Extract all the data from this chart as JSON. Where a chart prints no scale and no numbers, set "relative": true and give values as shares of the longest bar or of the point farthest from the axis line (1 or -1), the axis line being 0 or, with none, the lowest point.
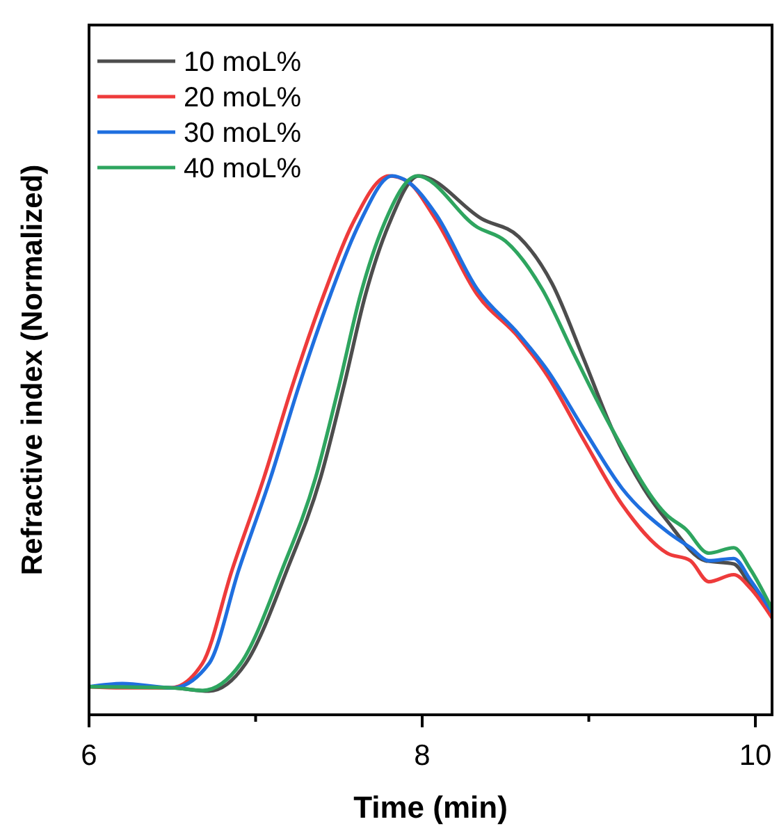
{
  "chart_data": {
    "type": "line",
    "xlabel": "Time (min)",
    "ylabel": "Refractive index (Normalized)",
    "relative": true,
    "xlim": [
      6,
      10.1
    ],
    "xticks": [
      6,
      {
        "value": 7,
        "label": null
      },
      8,
      {
        "value": 9,
        "label": null
      },
      10
    ],
    "legend": "top left",
    "grid": false,
    "marker": "none",
    "line_style": "solid",
    "series": [
      {
        "name": "10 moL%",
        "color": "#4d4d4d",
        "x": [
          6.0,
          6.5,
          6.72,
          6.94,
          7.19,
          7.39,
          7.53,
          7.66,
          7.8,
          7.98,
          8.36,
          8.58,
          8.78,
          8.97,
          9.14,
          9.33,
          9.47,
          9.7,
          9.87,
          9.97,
          10.1
        ],
        "values": [
          0.052,
          0.05,
          0.044,
          0.095,
          0.27,
          0.44,
          0.61,
          0.78,
          0.91,
          1.0,
          0.92,
          0.887,
          0.8,
          0.66,
          0.53,
          0.42,
          0.36,
          0.286,
          0.28,
          0.24,
          0.19
        ]
      },
      {
        "name": "20 moL%",
        "color": "#ee3b3b",
        "x": [
          6.0,
          6.2,
          6.49,
          6.68,
          6.86,
          7.05,
          7.22,
          7.41,
          7.58,
          7.8,
          7.91,
          8.08,
          8.33,
          8.58,
          8.75,
          8.97,
          9.2,
          9.47,
          9.61,
          9.72,
          9.87,
          9.97,
          10.1
        ],
        "values": [
          0.052,
          0.05,
          0.05,
          0.095,
          0.27,
          0.44,
          0.61,
          0.78,
          0.91,
          1.0,
          0.99,
          0.92,
          0.78,
          0.7,
          0.63,
          0.51,
          0.39,
          0.3,
          0.286,
          0.247,
          0.26,
          0.235,
          0.18
        ]
      },
      {
        "name": "30 moL%",
        "color": "#1f6fdf",
        "x": [
          6.0,
          6.2,
          6.5,
          6.72,
          6.9,
          7.09,
          7.26,
          7.45,
          7.62,
          7.82,
          7.91,
          8.08,
          8.33,
          8.58,
          8.75,
          8.97,
          9.2,
          9.47,
          9.61,
          9.72,
          9.87,
          9.97,
          10.1
        ],
        "values": [
          0.052,
          0.058,
          0.05,
          0.095,
          0.27,
          0.44,
          0.61,
          0.78,
          0.91,
          1.0,
          0.99,
          0.93,
          0.79,
          0.706,
          0.64,
          0.53,
          0.42,
          0.34,
          0.31,
          0.286,
          0.29,
          0.25,
          0.19
        ]
      },
      {
        "name": "40 moL%",
        "color": "#2ea55f",
        "x": [
          6.0,
          6.5,
          6.68,
          6.91,
          7.16,
          7.36,
          7.5,
          7.63,
          7.77,
          7.97,
          8.33,
          8.5,
          8.72,
          8.91,
          9.14,
          9.47,
          9.58,
          9.72,
          9.87,
          9.97,
          10.1
        ],
        "values": [
          0.052,
          0.05,
          0.045,
          0.095,
          0.27,
          0.44,
          0.61,
          0.78,
          0.91,
          1.0,
          0.905,
          0.879,
          0.79,
          0.67,
          0.53,
          0.37,
          0.345,
          0.3,
          0.31,
          0.27,
          0.196
        ]
      }
    ]
  }
}
